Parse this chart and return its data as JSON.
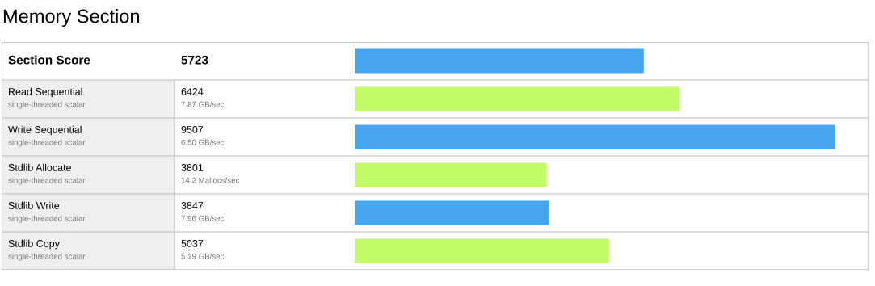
{
  "chart_data": {
    "type": "bar",
    "orientation": "horizontal",
    "title": "Memory Section",
    "categories": [
      "Section Score",
      "Read Sequential\nsingle-threaded scalar",
      "Write Sequential\nsingle-threaded scalar",
      "Stdlib Allocate\nsingle-threaded scalar",
      "Stdlib Write\nsingle-threaded scalar",
      "Stdlib Copy\nsingle-threaded scalar"
    ],
    "values": [
      5723,
      6424,
      9507,
      3801,
      3847,
      5037
    ],
    "data_labels": true,
    "annotations": [
      "7.87 GB/sec",
      "6.50 GB/sec",
      "14.2 Mallocs/sec",
      "7.96 GB/sec",
      "5.19 GB/sec"
    ],
    "colors": [
      "#45a5ee",
      "#c2fd69",
      "#45a5ee",
      "#c2fd69",
      "#45a5ee",
      "#c2fd69"
    ]
  }
}
